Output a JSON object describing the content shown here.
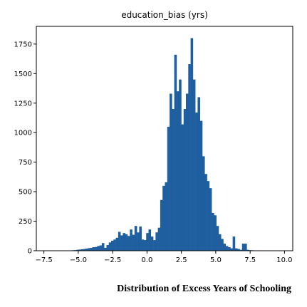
{
  "chart_data": {
    "type": "histogram",
    "title": "education_bias (yrs)",
    "xlim": [
      -8.05,
      10.6
    ],
    "ylim": [
      0,
      1900
    ],
    "x_ticks": [
      -7.5,
      -5.0,
      -2.5,
      0.0,
      2.5,
      5.0,
      7.5,
      10.0
    ],
    "x_tick_labels": [
      "−7.5",
      "−5.0",
      "−2.5",
      "0.0",
      "2.5",
      "5.0",
      "7.5",
      "10.0"
    ],
    "y_ticks": [
      0,
      250,
      500,
      750,
      1000,
      1250,
      1500,
      1750
    ],
    "y_tick_labels": [
      "0",
      "250",
      "500",
      "750",
      "1000",
      "1250",
      "1500",
      "1750"
    ],
    "bin_start": -7.2,
    "bin_width": 0.17,
    "counts": [
      0,
      0,
      0,
      0,
      0,
      0,
      0,
      2,
      3,
      3,
      4,
      5,
      8,
      10,
      12,
      15,
      18,
      22,
      25,
      30,
      32,
      40,
      45,
      65,
      25,
      48,
      70,
      85,
      95,
      110,
      160,
      130,
      150,
      140,
      125,
      180,
      135,
      210,
      155,
      205,
      95,
      90,
      150,
      180,
      120,
      90,
      155,
      195,
      430,
      550,
      580,
      1050,
      1330,
      1200,
      1660,
      1350,
      1450,
      1070,
      1200,
      1330,
      1580,
      1800,
      1450,
      1170,
      1300,
      1100,
      800,
      650,
      590,
      530,
      320,
      300,
      210,
      140,
      100,
      60,
      40,
      30,
      20,
      120,
      20,
      15,
      8,
      60,
      60,
      8,
      5,
      4,
      3,
      3,
      2,
      2,
      1,
      1,
      1,
      0,
      0,
      0,
      0,
      0
    ]
  },
  "caption": "Distribution of Excess Years of Schooling"
}
